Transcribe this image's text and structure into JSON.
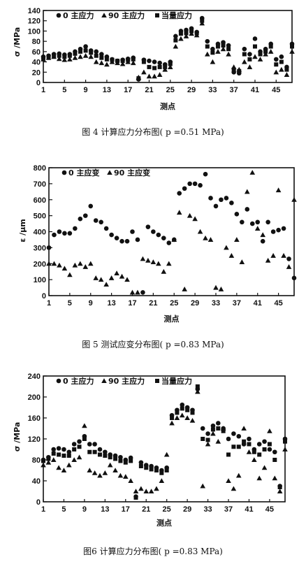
{
  "chart_data": [
    {
      "type": "scatter",
      "ylabel": "σ /MPa",
      "xlabel": "测点",
      "xlim": [
        1,
        48
      ],
      "ylim": [
        0,
        140
      ],
      "yticks": [
        0,
        20,
        40,
        60,
        80,
        100,
        120,
        140
      ],
      "xticks": [
        1,
        5,
        9,
        13,
        17,
        21,
        25,
        29,
        33,
        37,
        41,
        45
      ],
      "legend": [
        "0 主应力",
        "90 主应力",
        "当量应力"
      ],
      "caption": "图 4  计算应力分布图( p =0.51 MPa)",
      "series": [
        {
          "name": "0 主应力",
          "marker": "circle",
          "x": [
            1,
            2,
            3,
            4,
            5,
            6,
            7,
            8,
            9,
            10,
            11,
            12,
            13,
            14,
            15,
            16,
            17,
            18,
            19,
            20,
            21,
            22,
            23,
            24,
            25,
            26,
            27,
            28,
            29,
            30,
            31,
            32,
            33,
            34,
            35,
            36,
            37,
            38,
            39,
            40,
            41,
            42,
            43,
            44,
            45,
            46,
            47,
            48
          ],
          "y": [
            50,
            52,
            55,
            56,
            54,
            55,
            60,
            65,
            70,
            62,
            60,
            55,
            50,
            45,
            42,
            44,
            46,
            48,
            6,
            44,
            42,
            40,
            38,
            35,
            40,
            90,
            100,
            102,
            105,
            98,
            125,
            80,
            65,
            75,
            78,
            72,
            20,
            18,
            65,
            55,
            85,
            60,
            65,
            75,
            45,
            50,
            30,
            75
          ]
        },
        {
          "name": "90 主应力",
          "marker": "triangle",
          "x": [
            1,
            2,
            3,
            4,
            5,
            6,
            7,
            8,
            9,
            10,
            11,
            12,
            13,
            14,
            15,
            16,
            17,
            18,
            19,
            20,
            21,
            22,
            23,
            24,
            25,
            26,
            27,
            28,
            29,
            30,
            31,
            32,
            33,
            34,
            35,
            36,
            37,
            38,
            39,
            40,
            41,
            42,
            43,
            44,
            45,
            46,
            47,
            48
          ],
          "y": [
            45,
            48,
            50,
            46,
            44,
            45,
            48,
            50,
            52,
            50,
            40,
            38,
            35,
            40,
            38,
            36,
            40,
            38,
            10,
            20,
            12,
            12,
            15,
            25,
            30,
            70,
            85,
            90,
            95,
            92,
            115,
            55,
            40,
            60,
            65,
            55,
            30,
            25,
            40,
            30,
            50,
            45,
            55,
            60,
            20,
            25,
            15,
            60
          ]
        },
        {
          "name": "当量应力",
          "marker": "square",
          "x": [
            1,
            2,
            3,
            4,
            5,
            6,
            7,
            8,
            9,
            10,
            11,
            12,
            13,
            14,
            15,
            16,
            17,
            18,
            19,
            20,
            21,
            22,
            23,
            24,
            25,
            26,
            27,
            28,
            29,
            30,
            31,
            32,
            33,
            34,
            35,
            36,
            37,
            38,
            39,
            40,
            41,
            42,
            43,
            44,
            45,
            46,
            47,
            48
          ],
          "y": [
            48,
            50,
            52,
            52,
            50,
            52,
            56,
            60,
            62,
            58,
            52,
            48,
            45,
            44,
            42,
            42,
            44,
            45,
            8,
            40,
            30,
            28,
            30,
            30,
            36,
            82,
            95,
            96,
            100,
            96,
            120,
            70,
            58,
            70,
            72,
            65,
            25,
            22,
            55,
            45,
            70,
            55,
            60,
            70,
            35,
            40,
            25,
            70
          ]
        }
      ]
    },
    {
      "type": "scatter",
      "ylabel": "ε /μm",
      "xlabel": "测点",
      "xlim": [
        1,
        48
      ],
      "ylim": [
        0,
        800
      ],
      "yticks": [
        0,
        100,
        200,
        300,
        400,
        500,
        600,
        700,
        800
      ],
      "xticks": [
        1,
        5,
        9,
        13,
        17,
        21,
        25,
        29,
        33,
        37,
        41,
        45
      ],
      "legend": [
        "0 主应变",
        "90 主应变"
      ],
      "caption": "图 5  测试应变分布图( p =0.83 MPa)",
      "series": [
        {
          "name": "0 主应变",
          "marker": "circle",
          "x": [
            1,
            2,
            3,
            4,
            5,
            6,
            7,
            8,
            9,
            10,
            11,
            12,
            13,
            14,
            15,
            16,
            17,
            18,
            19,
            20,
            21,
            22,
            23,
            24,
            25,
            26,
            27,
            28,
            29,
            30,
            31,
            32,
            33,
            34,
            35,
            36,
            37,
            38,
            39,
            40,
            41,
            42,
            43,
            44,
            45,
            46,
            47,
            48
          ],
          "y": [
            300,
            380,
            400,
            390,
            390,
            420,
            480,
            500,
            560,
            470,
            460,
            420,
            380,
            360,
            340,
            340,
            400,
            350,
            20,
            430,
            400,
            380,
            360,
            330,
            350,
            640,
            670,
            700,
            700,
            690,
            760,
            610,
            560,
            600,
            610,
            580,
            510,
            460,
            540,
            450,
            460,
            340,
            460,
            400,
            410,
            420,
            230,
            110
          ]
        },
        {
          "name": "90 主应变",
          "marker": "triangle",
          "x": [
            1,
            2,
            3,
            4,
            5,
            6,
            7,
            8,
            9,
            10,
            11,
            12,
            13,
            14,
            15,
            16,
            17,
            18,
            19,
            20,
            21,
            22,
            23,
            24,
            25,
            26,
            27,
            28,
            29,
            30,
            31,
            32,
            33,
            34,
            35,
            36,
            37,
            38,
            39,
            40,
            41,
            42,
            43,
            44,
            45,
            46,
            47,
            48
          ],
          "y": [
            200,
            200,
            190,
            170,
            130,
            190,
            200,
            180,
            200,
            110,
            100,
            70,
            110,
            140,
            120,
            100,
            20,
            20,
            230,
            220,
            210,
            200,
            150,
            200,
            350,
            520,
            40,
            500,
            480,
            400,
            360,
            350,
            50,
            40,
            300,
            250,
            350,
            210,
            650,
            770,
            420,
            380,
            220,
            250,
            660,
            250,
            180,
            600
          ]
        }
      ]
    },
    {
      "type": "scatter",
      "ylabel": "σ /MPa",
      "xlabel": "测点",
      "xlim": [
        1,
        48
      ],
      "ylim": [
        0,
        240
      ],
      "yticks": [
        0,
        40,
        80,
        120,
        160,
        200,
        240
      ],
      "xticks": [
        1,
        5,
        9,
        13,
        17,
        21,
        25,
        29,
        33,
        37,
        41,
        45
      ],
      "legend": [
        "0 主应力",
        "90 主应力",
        "当量应力"
      ],
      "caption": "图6  计算应力分布图( p =0.83 MPa)",
      "series": [
        {
          "name": "0 主应力",
          "marker": "circle",
          "x": [
            1,
            2,
            3,
            4,
            5,
            6,
            7,
            8,
            9,
            10,
            11,
            12,
            13,
            14,
            15,
            16,
            17,
            18,
            19,
            20,
            21,
            22,
            23,
            24,
            25,
            26,
            27,
            28,
            29,
            30,
            31,
            32,
            33,
            34,
            35,
            36,
            37,
            38,
            39,
            40,
            41,
            42,
            43,
            44,
            45,
            46,
            47,
            48
          ],
          "y": [
            80,
            85,
            100,
            102,
            100,
            95,
            110,
            115,
            125,
            110,
            110,
            100,
            95,
            90,
            88,
            85,
            80,
            84,
            10,
            75,
            70,
            68,
            65,
            60,
            65,
            165,
            175,
            185,
            180,
            175,
            215,
            140,
            130,
            145,
            150,
            140,
            120,
            130,
            125,
            110,
            120,
            100,
            110,
            115,
            100,
            95,
            30,
            120
          ]
        },
        {
          "name": "90 主应力",
          "marker": "triangle",
          "x": [
            1,
            2,
            3,
            4,
            5,
            6,
            7,
            8,
            9,
            10,
            11,
            12,
            13,
            14,
            15,
            16,
            17,
            18,
            19,
            20,
            21,
            22,
            23,
            24,
            25,
            26,
            27,
            28,
            29,
            30,
            31,
            32,
            33,
            34,
            35,
            36,
            37,
            38,
            39,
            40,
            41,
            42,
            43,
            44,
            45,
            46,
            47,
            48
          ],
          "y": [
            70,
            75,
            80,
            65,
            60,
            70,
            80,
            85,
            145,
            60,
            55,
            50,
            55,
            70,
            60,
            50,
            48,
            40,
            20,
            25,
            20,
            20,
            25,
            40,
            90,
            150,
            160,
            165,
            160,
            155,
            210,
            30,
            110,
            130,
            115,
            140,
            40,
            25,
            50,
            140,
            95,
            80,
            45,
            65,
            135,
            45,
            20,
            100
          ]
        },
        {
          "name": "当量应力",
          "marker": "square",
          "x": [
            1,
            2,
            3,
            4,
            5,
            6,
            7,
            8,
            9,
            10,
            11,
            12,
            13,
            14,
            15,
            16,
            17,
            18,
            19,
            20,
            21,
            22,
            23,
            24,
            25,
            26,
            27,
            28,
            29,
            30,
            31,
            32,
            33,
            34,
            35,
            36,
            37,
            38,
            39,
            40,
            41,
            42,
            43,
            44,
            45,
            46,
            47,
            48
          ],
          "y": [
            78,
            82,
            92,
            90,
            88,
            88,
            100,
            105,
            120,
            95,
            95,
            90,
            88,
            85,
            82,
            78,
            75,
            78,
            8,
            68,
            65,
            62,
            60,
            55,
            60,
            160,
            170,
            178,
            175,
            170,
            220,
            120,
            118,
            138,
            140,
            135,
            90,
            105,
            105,
            115,
            110,
            95,
            90,
            100,
            110,
            80,
            28,
            115
          ]
        }
      ]
    }
  ]
}
